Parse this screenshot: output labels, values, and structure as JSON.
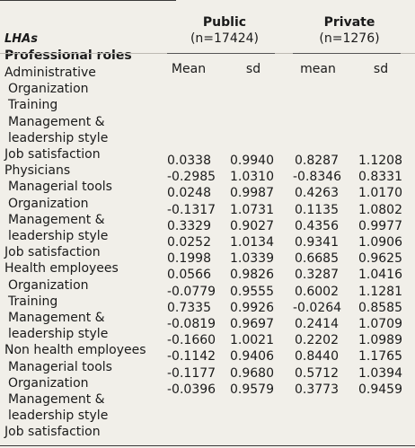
{
  "header": {
    "public": {
      "name": "Public",
      "n": "(n=17424)"
    },
    "private": {
      "name": "Private",
      "n": "(n=1276)"
    },
    "lhas": "LHAs",
    "roles": "Professional roles",
    "cols": [
      "Mean",
      "sd",
      "mean",
      "sd"
    ]
  },
  "labels": [
    {
      "text": "Administrative",
      "sub": false
    },
    {
      "text": "Organization",
      "sub": true
    },
    {
      "text": "Training",
      "sub": true
    },
    {
      "text": "Management &",
      "sub": true
    },
    {
      "text": "leadership style",
      "sub": true
    },
    {
      "text": "Job satisfaction",
      "sub": false
    },
    {
      "text": "Physicians",
      "sub": false
    },
    {
      "text": "Managerial tools",
      "sub": true
    },
    {
      "text": "Organization",
      "sub": true
    },
    {
      "text": "Management &",
      "sub": true
    },
    {
      "text": "leadership style",
      "sub": true
    },
    {
      "text": "Job satisfaction",
      "sub": false
    },
    {
      "text": "Health employees",
      "sub": false
    },
    {
      "text": "Organization",
      "sub": true
    },
    {
      "text": "Training",
      "sub": true
    },
    {
      "text": "Management &",
      "sub": true
    },
    {
      "text": "leadership style",
      "sub": true
    },
    {
      "text": "Non health employees",
      "sub": false
    },
    {
      "text": "Managerial tools",
      "sub": true
    },
    {
      "text": "Organization",
      "sub": true
    },
    {
      "text": "Management &",
      "sub": true
    },
    {
      "text": "leadership style",
      "sub": true
    },
    {
      "text": "Job satisfaction",
      "sub": false
    }
  ],
  "values": {
    "public_mean": [
      "0.0338",
      "-0.2985",
      "0.0248",
      "-0.1317",
      "0.3329",
      "0.0252",
      "0.1998",
      "0.0566",
      "-0.0779",
      "0.7335",
      "-0.0819",
      "-0.1660",
      "-0.1142",
      "-0.1177",
      "-0.0396"
    ],
    "public_sd": [
      "0.9940",
      "1.0310",
      "0.9987",
      "1.0731",
      "0.9027",
      "1.0134",
      "1.0339",
      "0.9826",
      "0.9555",
      "0.9926",
      "0.9697",
      "1.0021",
      "0.9406",
      "0.9680",
      "0.9579"
    ],
    "private_mean": [
      "0.8287",
      "-0.8346",
      "0.4263",
      "0.1135",
      "0.4356",
      "0.9341",
      "0.6685",
      "0.3287",
      "0.6002",
      "-0.0264",
      "0.2414",
      "0.2202",
      "0.8440",
      "0.5712",
      "0.3773"
    ],
    "private_sd": [
      "1.1208",
      "0.8331",
      "1.0170",
      "1.0802",
      "0.9977",
      "1.0906",
      "0.9625",
      "1.0416",
      "1.1281",
      "0.8585",
      "1.0709",
      "1.0989",
      "1.1765",
      "1.0394",
      "0.9459"
    ]
  }
}
